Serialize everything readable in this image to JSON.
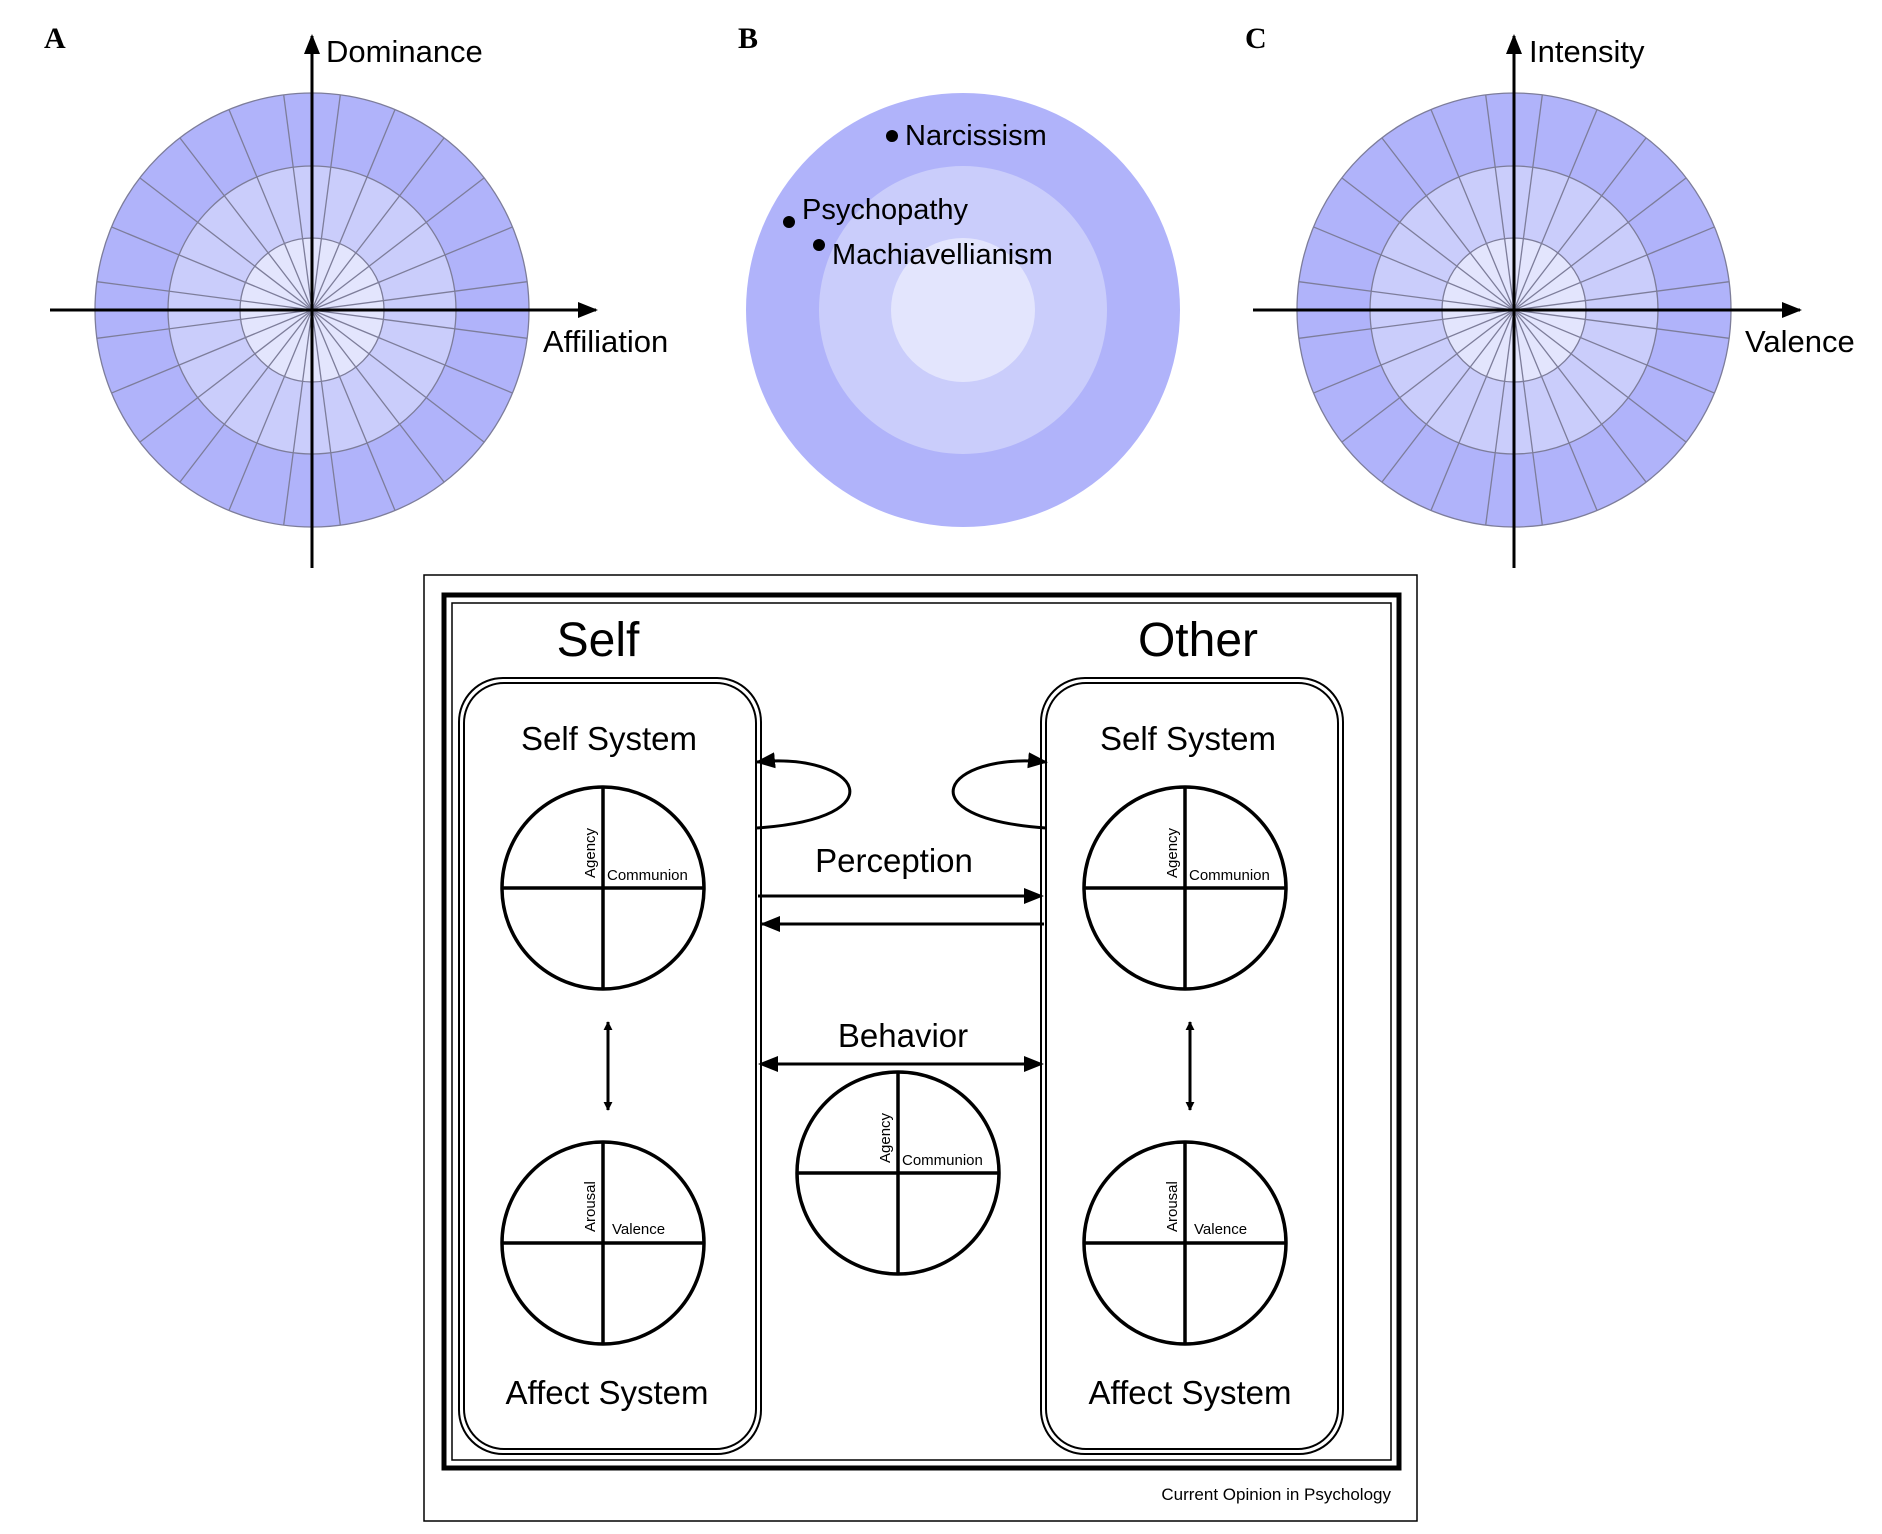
{
  "panels": {
    "a": {
      "letter": "A",
      "y_axis_label": "Dominance",
      "x_axis_label": "Affiliation"
    },
    "b": {
      "letter": "B",
      "traits": [
        "Narcissism",
        "Psychopathy",
        "Machiavellianism"
      ]
    },
    "c": {
      "letter": "C",
      "y_axis_label": "Intensity",
      "x_axis_label": "Valence"
    }
  },
  "diagram": {
    "self_title": "Self",
    "other_title": "Other",
    "self_system_label": "Self System",
    "affect_system_label": "Affect System",
    "perception_label": "Perception",
    "behavior_label": "Behavior",
    "circle_labels": {
      "agency": "Agency",
      "communion": "Communion",
      "arousal": "Arousal",
      "valence": "Valence"
    }
  },
  "footer_credit": "Current Opinion in Psychology",
  "colors": {
    "ring_outer": "#b0b3fa",
    "ring_middle": "#cacdfb",
    "ring_inner": "#e3e5fd",
    "segment_line": "#7d7d9a",
    "axis": "#000000"
  }
}
